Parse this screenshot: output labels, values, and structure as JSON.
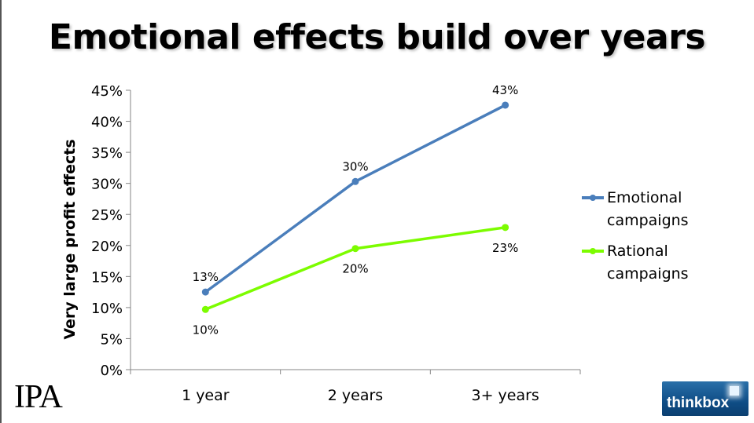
{
  "title": "Emotional effects build over years",
  "logos": {
    "ipa": "IPA",
    "thinkbox": "thinkbox"
  },
  "chart_data": {
    "type": "line",
    "title": "Emotional effects build over years",
    "xlabel": "",
    "ylabel": "Very large profit effects",
    "categories": [
      "1 year",
      "2 years",
      "3+ years"
    ],
    "ylim": [
      0,
      45
    ],
    "yticks": [
      0,
      5,
      10,
      15,
      20,
      25,
      30,
      35,
      40,
      45
    ],
    "ytick_labels": [
      "0%",
      "5%",
      "10%",
      "15%",
      "20%",
      "25%",
      "30%",
      "35%",
      "40%",
      "45%"
    ],
    "grid": false,
    "legend_position": "right",
    "series": [
      {
        "name": "Emotional campaigns",
        "values": [
          12.5,
          30.3,
          42.6
        ],
        "labels": [
          "13%",
          "30%",
          "43%"
        ],
        "color": "#4a7ebb",
        "label_position": "above"
      },
      {
        "name": "Rational campaigns",
        "values": [
          9.7,
          19.5,
          22.9
        ],
        "labels": [
          "10%",
          "20%",
          "23%"
        ],
        "color": "#7cfc00",
        "label_position": "below"
      }
    ]
  }
}
